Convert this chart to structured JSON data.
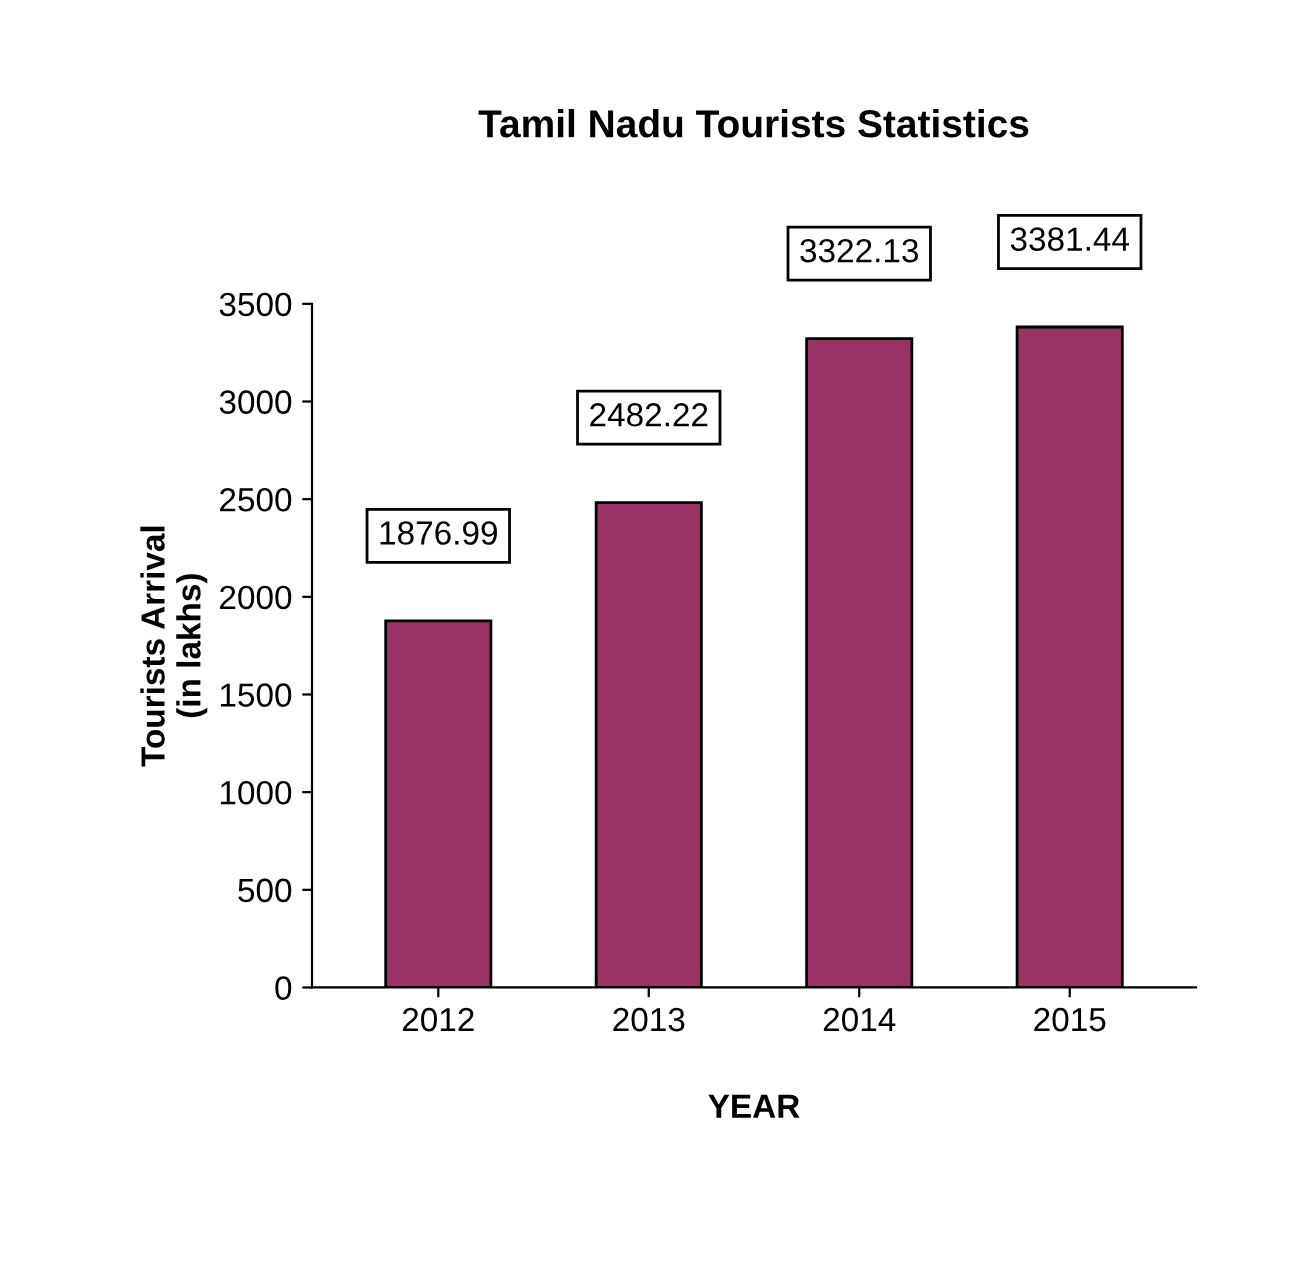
{
  "chart_data": {
    "type": "bar",
    "title": "Tamil Nadu Tourists Statistics",
    "xlabel": "YEAR",
    "ylabel": "Tourists Arrival\n(in lakhs)",
    "categories": [
      "2012",
      "2013",
      "2014",
      "2015"
    ],
    "values": [
      1876.99,
      2482.22,
      3322.13,
      3381.44
    ],
    "color": "#993366",
    "ylim": [
      0,
      3500
    ],
    "yticks": [
      0,
      500,
      1000,
      1500,
      2000,
      2500,
      3000,
      3500
    ],
    "grid": false,
    "data_labels": true
  }
}
